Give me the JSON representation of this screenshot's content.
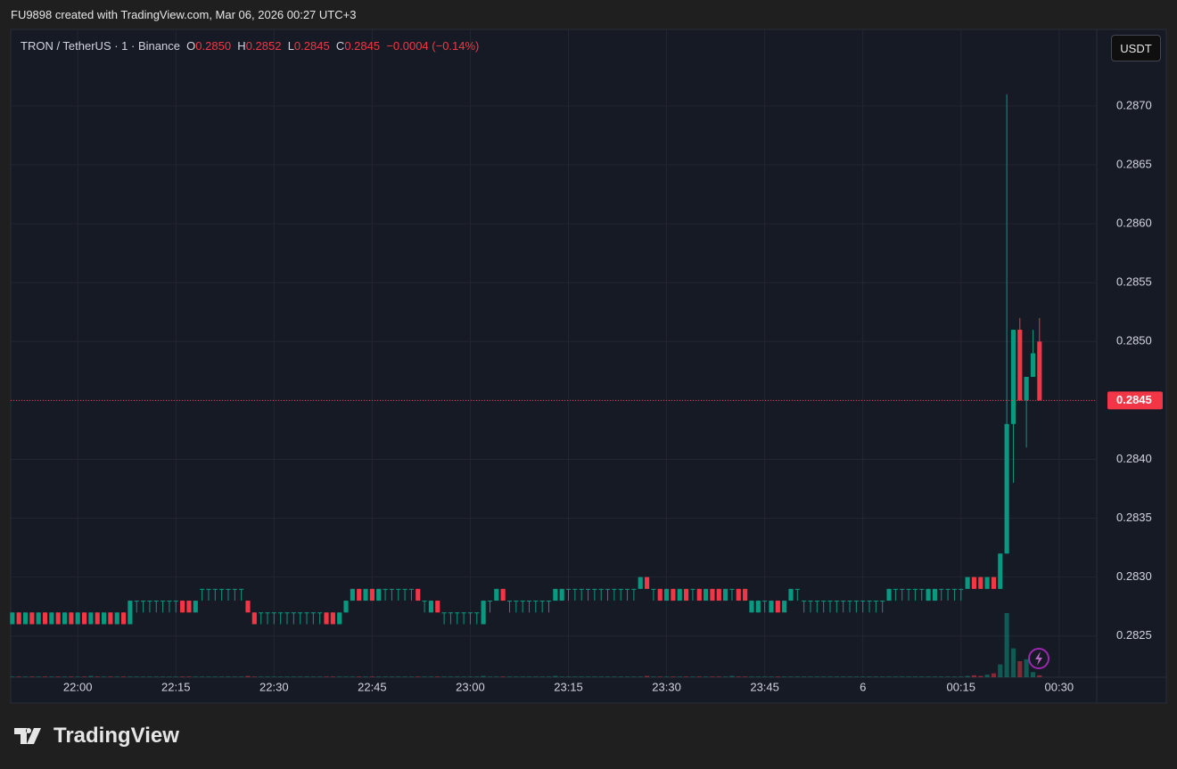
{
  "header": {
    "text": "FU9898 created with TradingView.com, Mar 06, 2026 00:27 UTC+3"
  },
  "legend": {
    "symbol": "TRON / TetherUS · 1 · Binance",
    "o_label": "O",
    "open": "0.2850",
    "h_label": "H",
    "high": "0.2852",
    "l_label": "L",
    "low": "0.2845",
    "c_label": "C",
    "close": "0.2845",
    "change": "−0.0004 (−0.14%)"
  },
  "currency_button": "USDT",
  "footer": {
    "logo": "TradingView"
  },
  "chart_data": {
    "type": "candlestick",
    "up_color": "#089981",
    "down_color": "#f23645",
    "grid": true,
    "ylim": [
      0.28215,
      0.28765
    ],
    "yticks": [
      0.2825,
      {
        "value": 0.283,
        "label": "0.2830"
      },
      0.2835,
      {
        "value": 0.284,
        "label": "0.2840"
      },
      0.2845,
      {
        "value": 0.285,
        "label": "0.2850"
      },
      0.2855,
      {
        "value": 0.286,
        "label": "0.2860"
      },
      0.2865,
      {
        "value": 0.287,
        "label": "0.2870"
      }
    ],
    "xticks": [
      "22:00",
      "22:15",
      "22:30",
      "22:45",
      "23:00",
      "23:15",
      "23:30",
      "23:45",
      {
        "value": "00:00",
        "label": "6"
      },
      "00:15",
      "00:30"
    ],
    "x": [
      "21:50",
      "21:51",
      "21:52",
      "21:53",
      "21:54",
      "21:55",
      "21:56",
      "21:57",
      "21:58",
      "21:59",
      "22:00",
      "22:01",
      "22:02",
      "22:03",
      "22:04",
      "22:05",
      "22:06",
      "22:07",
      "22:08",
      "22:09",
      "22:10",
      "22:11",
      "22:12",
      "22:13",
      "22:14",
      "22:15",
      "22:16",
      "22:17",
      "22:18",
      "22:19",
      "22:20",
      "22:21",
      "22:22",
      "22:23",
      "22:24",
      "22:25",
      "22:26",
      "22:27",
      "22:28",
      "22:29",
      "22:30",
      "22:31",
      "22:32",
      "22:33",
      "22:34",
      "22:35",
      "22:36",
      "22:37",
      "22:38",
      "22:39",
      "22:40",
      "22:41",
      "22:42",
      "22:43",
      "22:44",
      "22:45",
      "22:46",
      "22:47",
      "22:48",
      "22:49",
      "22:50",
      "22:51",
      "22:52",
      "22:53",
      "22:54",
      "22:55",
      "22:56",
      "22:57",
      "22:58",
      "22:59",
      "23:00",
      "23:01",
      "23:02",
      "23:03",
      "23:04",
      "23:05",
      "23:06",
      "23:07",
      "23:08",
      "23:09",
      "23:10",
      "23:11",
      "23:12",
      "23:13",
      "23:14",
      "23:15",
      "23:16",
      "23:17",
      "23:18",
      "23:19",
      "23:20",
      "23:21",
      "23:22",
      "23:23",
      "23:24",
      "23:25",
      "23:26",
      "23:27",
      "23:28",
      "23:29",
      "23:30",
      "23:31",
      "23:32",
      "23:33",
      "23:34",
      "23:35",
      "23:36",
      "23:37",
      "23:38",
      "23:39",
      "23:40",
      "23:41",
      "23:42",
      "23:43",
      "23:44",
      "23:45",
      "23:46",
      "23:47",
      "23:48",
      "23:49",
      "23:50",
      "23:51",
      "23:52",
      "23:53",
      "23:54",
      "23:55",
      "23:56",
      "23:57",
      "23:58",
      "23:59",
      "00:00",
      "00:01",
      "00:02",
      "00:03",
      "00:04",
      "00:05",
      "00:06",
      "00:07",
      "00:08",
      "00:09",
      "00:10",
      "00:11",
      "00:12",
      "00:13",
      "00:14",
      "00:15",
      "00:16",
      "00:17",
      "00:18",
      "00:19",
      "00:20",
      "00:21",
      "00:22",
      "00:23",
      "00:24",
      "00:25",
      "00:26",
      "00:27"
    ],
    "open": [
      0.2826,
      0.2827,
      0.2826,
      0.2827,
      0.2826,
      0.2827,
      0.2826,
      0.2827,
      0.2826,
      0.2827,
      0.2826,
      0.2827,
      0.2826,
      0.2827,
      0.2826,
      0.2827,
      0.2826,
      0.2827,
      0.2826,
      0.2828,
      0.2828,
      0.2828,
      0.2828,
      0.2828,
      0.2828,
      0.2828,
      0.2828,
      0.2828,
      0.2827,
      0.2829,
      0.2829,
      0.2829,
      0.2829,
      0.2829,
      0.2829,
      0.2829,
      0.2828,
      0.2827,
      0.2827,
      0.2827,
      0.2827,
      0.2827,
      0.2827,
      0.2827,
      0.2827,
      0.2827,
      0.2827,
      0.2827,
      0.2827,
      0.2827,
      0.2826,
      0.2827,
      0.2828,
      0.2829,
      0.2828,
      0.2829,
      0.2828,
      0.2829,
      0.2829,
      0.2829,
      0.2829,
      0.2829,
      0.2829,
      0.2828,
      0.2827,
      0.2828,
      0.2827,
      0.2827,
      0.2827,
      0.2827,
      0.2827,
      0.2827,
      0.2826,
      0.2828,
      0.2828,
      0.2829,
      0.2828,
      0.2828,
      0.2828,
      0.2828,
      0.2828,
      0.2828,
      0.2828,
      0.2828,
      0.2828,
      0.2829,
      0.2829,
      0.2829,
      0.2829,
      0.2829,
      0.2829,
      0.2829,
      0.2829,
      0.2829,
      0.2829,
      0.2829,
      0.2829,
      0.283,
      0.2829,
      0.2829,
      0.2828,
      0.2829,
      0.2828,
      0.2829,
      0.2829,
      0.2829,
      0.2828,
      0.2829,
      0.2829,
      0.2828,
      0.2829,
      0.2829,
      0.2829,
      0.2827,
      0.2827,
      0.2828,
      0.2827,
      0.2828,
      0.2827,
      0.2828,
      0.2829,
      0.2828,
      0.2828,
      0.2828,
      0.2828,
      0.2828,
      0.2828,
      0.2828,
      0.2828,
      0.2828,
      0.2828,
      0.2828,
      0.2828,
      0.2828,
      0.2828,
      0.2829,
      0.2829,
      0.2829,
      0.2829,
      0.2829,
      0.2828,
      0.2828,
      0.2829,
      0.2829,
      0.2829,
      0.2829,
      0.2829,
      0.283,
      0.283,
      0.2829,
      0.283,
      0.2829,
      0.2832,
      0.2843,
      0.2851,
      0.2845,
      0.2847,
      0.285
    ],
    "high": [
      0.2827,
      0.2827,
      0.2827,
      0.2827,
      0.2827,
      0.2827,
      0.2827,
      0.2827,
      0.2827,
      0.2827,
      0.2827,
      0.2827,
      0.2827,
      0.2827,
      0.2827,
      0.2827,
      0.2827,
      0.2827,
      0.2828,
      0.2828,
      0.2828,
      0.2828,
      0.2828,
      0.2828,
      0.2828,
      0.2828,
      0.2828,
      0.2828,
      0.2828,
      0.2829,
      0.2829,
      0.2829,
      0.2829,
      0.2829,
      0.2829,
      0.2829,
      0.2828,
      0.2827,
      0.2827,
      0.2827,
      0.2827,
      0.2827,
      0.2827,
      0.2827,
      0.2827,
      0.2827,
      0.2827,
      0.2827,
      0.2827,
      0.2827,
      0.2827,
      0.2828,
      0.2829,
      0.2829,
      0.2829,
      0.2829,
      0.2829,
      0.2829,
      0.2829,
      0.2829,
      0.2829,
      0.2829,
      0.2829,
      0.2828,
      0.2828,
      0.2828,
      0.2827,
      0.2827,
      0.2827,
      0.2827,
      0.2827,
      0.2827,
      0.2828,
      0.2828,
      0.2829,
      0.2829,
      0.2828,
      0.2828,
      0.2828,
      0.2828,
      0.2828,
      0.2828,
      0.2828,
      0.2829,
      0.2829,
      0.2829,
      0.2829,
      0.2829,
      0.2829,
      0.2829,
      0.2829,
      0.2829,
      0.2829,
      0.2829,
      0.2829,
      0.2829,
      0.283,
      0.283,
      0.2829,
      0.2829,
      0.2829,
      0.2829,
      0.2829,
      0.2829,
      0.2829,
      0.2829,
      0.2829,
      0.2829,
      0.2829,
      0.2829,
      0.2829,
      0.2829,
      0.2829,
      0.2828,
      0.2828,
      0.2828,
      0.2828,
      0.2828,
      0.2828,
      0.2829,
      0.2829,
      0.2828,
      0.2828,
      0.2828,
      0.2828,
      0.2828,
      0.2828,
      0.2828,
      0.2828,
      0.2828,
      0.2828,
      0.2828,
      0.2828,
      0.2828,
      0.2829,
      0.2829,
      0.2829,
      0.2829,
      0.2829,
      0.2829,
      0.2829,
      0.2829,
      0.2829,
      0.2829,
      0.2829,
      0.2829,
      0.283,
      0.283,
      0.283,
      0.283,
      0.283,
      0.2832,
      0.2871,
      0.2851,
      0.2852,
      0.2847,
      0.2851,
      0.2852
    ],
    "low": [
      0.2826,
      0.2826,
      0.2826,
      0.2826,
      0.2826,
      0.2826,
      0.2826,
      0.2826,
      0.2826,
      0.2826,
      0.2826,
      0.2826,
      0.2826,
      0.2826,
      0.2826,
      0.2826,
      0.2826,
      0.2826,
      0.2826,
      0.2827,
      0.2827,
      0.2827,
      0.2827,
      0.2827,
      0.2827,
      0.2827,
      0.2827,
      0.2827,
      0.2827,
      0.2828,
      0.2828,
      0.2828,
      0.2828,
      0.2828,
      0.2828,
      0.2828,
      0.2827,
      0.2826,
      0.2826,
      0.2826,
      0.2826,
      0.2826,
      0.2826,
      0.2826,
      0.2826,
      0.2826,
      0.2826,
      0.2826,
      0.2826,
      0.2826,
      0.2826,
      0.2827,
      0.2828,
      0.2828,
      0.2828,
      0.2828,
      0.2828,
      0.2828,
      0.2828,
      0.2828,
      0.2828,
      0.2828,
      0.2828,
      0.2827,
      0.2827,
      0.2827,
      0.2826,
      0.2826,
      0.2826,
      0.2826,
      0.2826,
      0.2826,
      0.2826,
      0.2827,
      0.2828,
      0.2828,
      0.2827,
      0.2827,
      0.2827,
      0.2827,
      0.2827,
      0.2827,
      0.2827,
      0.2828,
      0.2828,
      0.2828,
      0.2828,
      0.2828,
      0.2828,
      0.2828,
      0.2828,
      0.2828,
      0.2828,
      0.2828,
      0.2828,
      0.2828,
      0.2829,
      0.2829,
      0.2828,
      0.2828,
      0.2828,
      0.2828,
      0.2828,
      0.2828,
      0.2828,
      0.2828,
      0.2828,
      0.2828,
      0.2828,
      0.2828,
      0.2828,
      0.2828,
      0.2828,
      0.2827,
      0.2827,
      0.2827,
      0.2827,
      0.2827,
      0.2827,
      0.2828,
      0.2828,
      0.2827,
      0.2827,
      0.2827,
      0.2827,
      0.2827,
      0.2827,
      0.2827,
      0.2827,
      0.2827,
      0.2827,
      0.2827,
      0.2827,
      0.2827,
      0.2828,
      0.2828,
      0.2828,
      0.2828,
      0.2828,
      0.2828,
      0.2828,
      0.2828,
      0.2828,
      0.2828,
      0.2828,
      0.2828,
      0.2829,
      0.2829,
      0.2829,
      0.2829,
      0.2829,
      0.2829,
      0.2832,
      0.2838,
      0.2845,
      0.2841,
      0.2847,
      0.2845
    ],
    "close": [
      0.2827,
      0.2826,
      0.2827,
      0.2826,
      0.2827,
      0.2826,
      0.2827,
      0.2826,
      0.2827,
      0.2826,
      0.2827,
      0.2826,
      0.2827,
      0.2826,
      0.2827,
      0.2826,
      0.2827,
      0.2826,
      0.2828,
      0.2828,
      0.2828,
      0.2828,
      0.2828,
      0.2828,
      0.2828,
      0.2828,
      0.2827,
      0.2827,
      0.2828,
      0.2829,
      0.2829,
      0.2829,
      0.2829,
      0.2829,
      0.2829,
      0.2829,
      0.2827,
      0.2826,
      0.2827,
      0.2827,
      0.2827,
      0.2827,
      0.2827,
      0.2827,
      0.2827,
      0.2827,
      0.2827,
      0.2827,
      0.2826,
      0.2826,
      0.2827,
      0.2828,
      0.2829,
      0.2828,
      0.2829,
      0.2828,
      0.2829,
      0.2829,
      0.2829,
      0.2829,
      0.2829,
      0.2829,
      0.2828,
      0.2828,
      0.2828,
      0.2827,
      0.2827,
      0.2827,
      0.2827,
      0.2827,
      0.2827,
      0.2827,
      0.2828,
      0.2828,
      0.2829,
      0.2828,
      0.2828,
      0.2828,
      0.2828,
      0.2828,
      0.2828,
      0.2828,
      0.2828,
      0.2829,
      0.2829,
      0.2829,
      0.2829,
      0.2829,
      0.2829,
      0.2829,
      0.2829,
      0.2829,
      0.2829,
      0.2829,
      0.2829,
      0.2829,
      0.283,
      0.2829,
      0.2829,
      0.2828,
      0.2829,
      0.2828,
      0.2829,
      0.2828,
      0.2829,
      0.2828,
      0.2829,
      0.2828,
      0.2828,
      0.2829,
      0.2829,
      0.2828,
      0.2828,
      0.2828,
      0.2828,
      0.2828,
      0.2828,
      0.2827,
      0.2828,
      0.2829,
      0.2829,
      0.2828,
      0.2828,
      0.2828,
      0.2828,
      0.2828,
      0.2828,
      0.2828,
      0.2828,
      0.2828,
      0.2828,
      0.2828,
      0.2828,
      0.2828,
      0.2829,
      0.2829,
      0.2829,
      0.2829,
      0.2829,
      0.2829,
      0.2829,
      0.2829,
      0.2829,
      0.2829,
      0.2829,
      0.2829,
      0.283,
      0.2829,
      0.2829,
      0.283,
      0.2829,
      0.2832,
      0.2843,
      0.2851,
      0.2845,
      0.2847,
      0.2849,
      0.2845
    ],
    "volume": [
      1,
      1,
      1,
      1,
      1,
      1,
      1,
      1,
      1,
      1,
      1,
      1,
      2,
      1,
      1,
      1,
      1,
      1,
      1,
      1,
      1,
      1,
      1,
      1,
      1,
      1,
      1,
      1,
      1,
      1,
      1,
      1,
      1,
      1,
      1,
      1,
      2,
      1,
      1,
      1,
      1,
      1,
      1,
      1,
      1,
      1,
      1,
      1,
      1,
      1,
      1,
      1,
      1,
      1,
      1,
      1,
      1,
      1,
      1,
      1,
      1,
      1,
      1,
      1,
      1,
      1,
      1,
      1,
      1,
      1,
      1,
      1,
      2,
      1,
      1,
      1,
      1,
      1,
      1,
      1,
      1,
      1,
      1,
      2,
      1,
      1,
      1,
      1,
      1,
      1,
      1,
      1,
      1,
      1,
      1,
      1,
      1,
      2,
      1,
      1,
      1,
      1,
      1,
      1,
      1,
      1,
      1,
      1,
      1,
      1,
      2,
      1,
      1,
      1,
      1,
      1,
      1,
      1,
      1,
      1,
      1,
      1,
      1,
      1,
      1,
      1,
      1,
      1,
      1,
      1,
      1,
      1,
      1,
      1,
      1,
      1,
      1,
      1,
      1,
      1,
      1,
      1,
      1,
      1,
      1,
      1,
      2,
      3,
      2,
      4,
      6,
      20,
      100,
      45,
      25,
      28,
      8,
      3
    ]
  }
}
